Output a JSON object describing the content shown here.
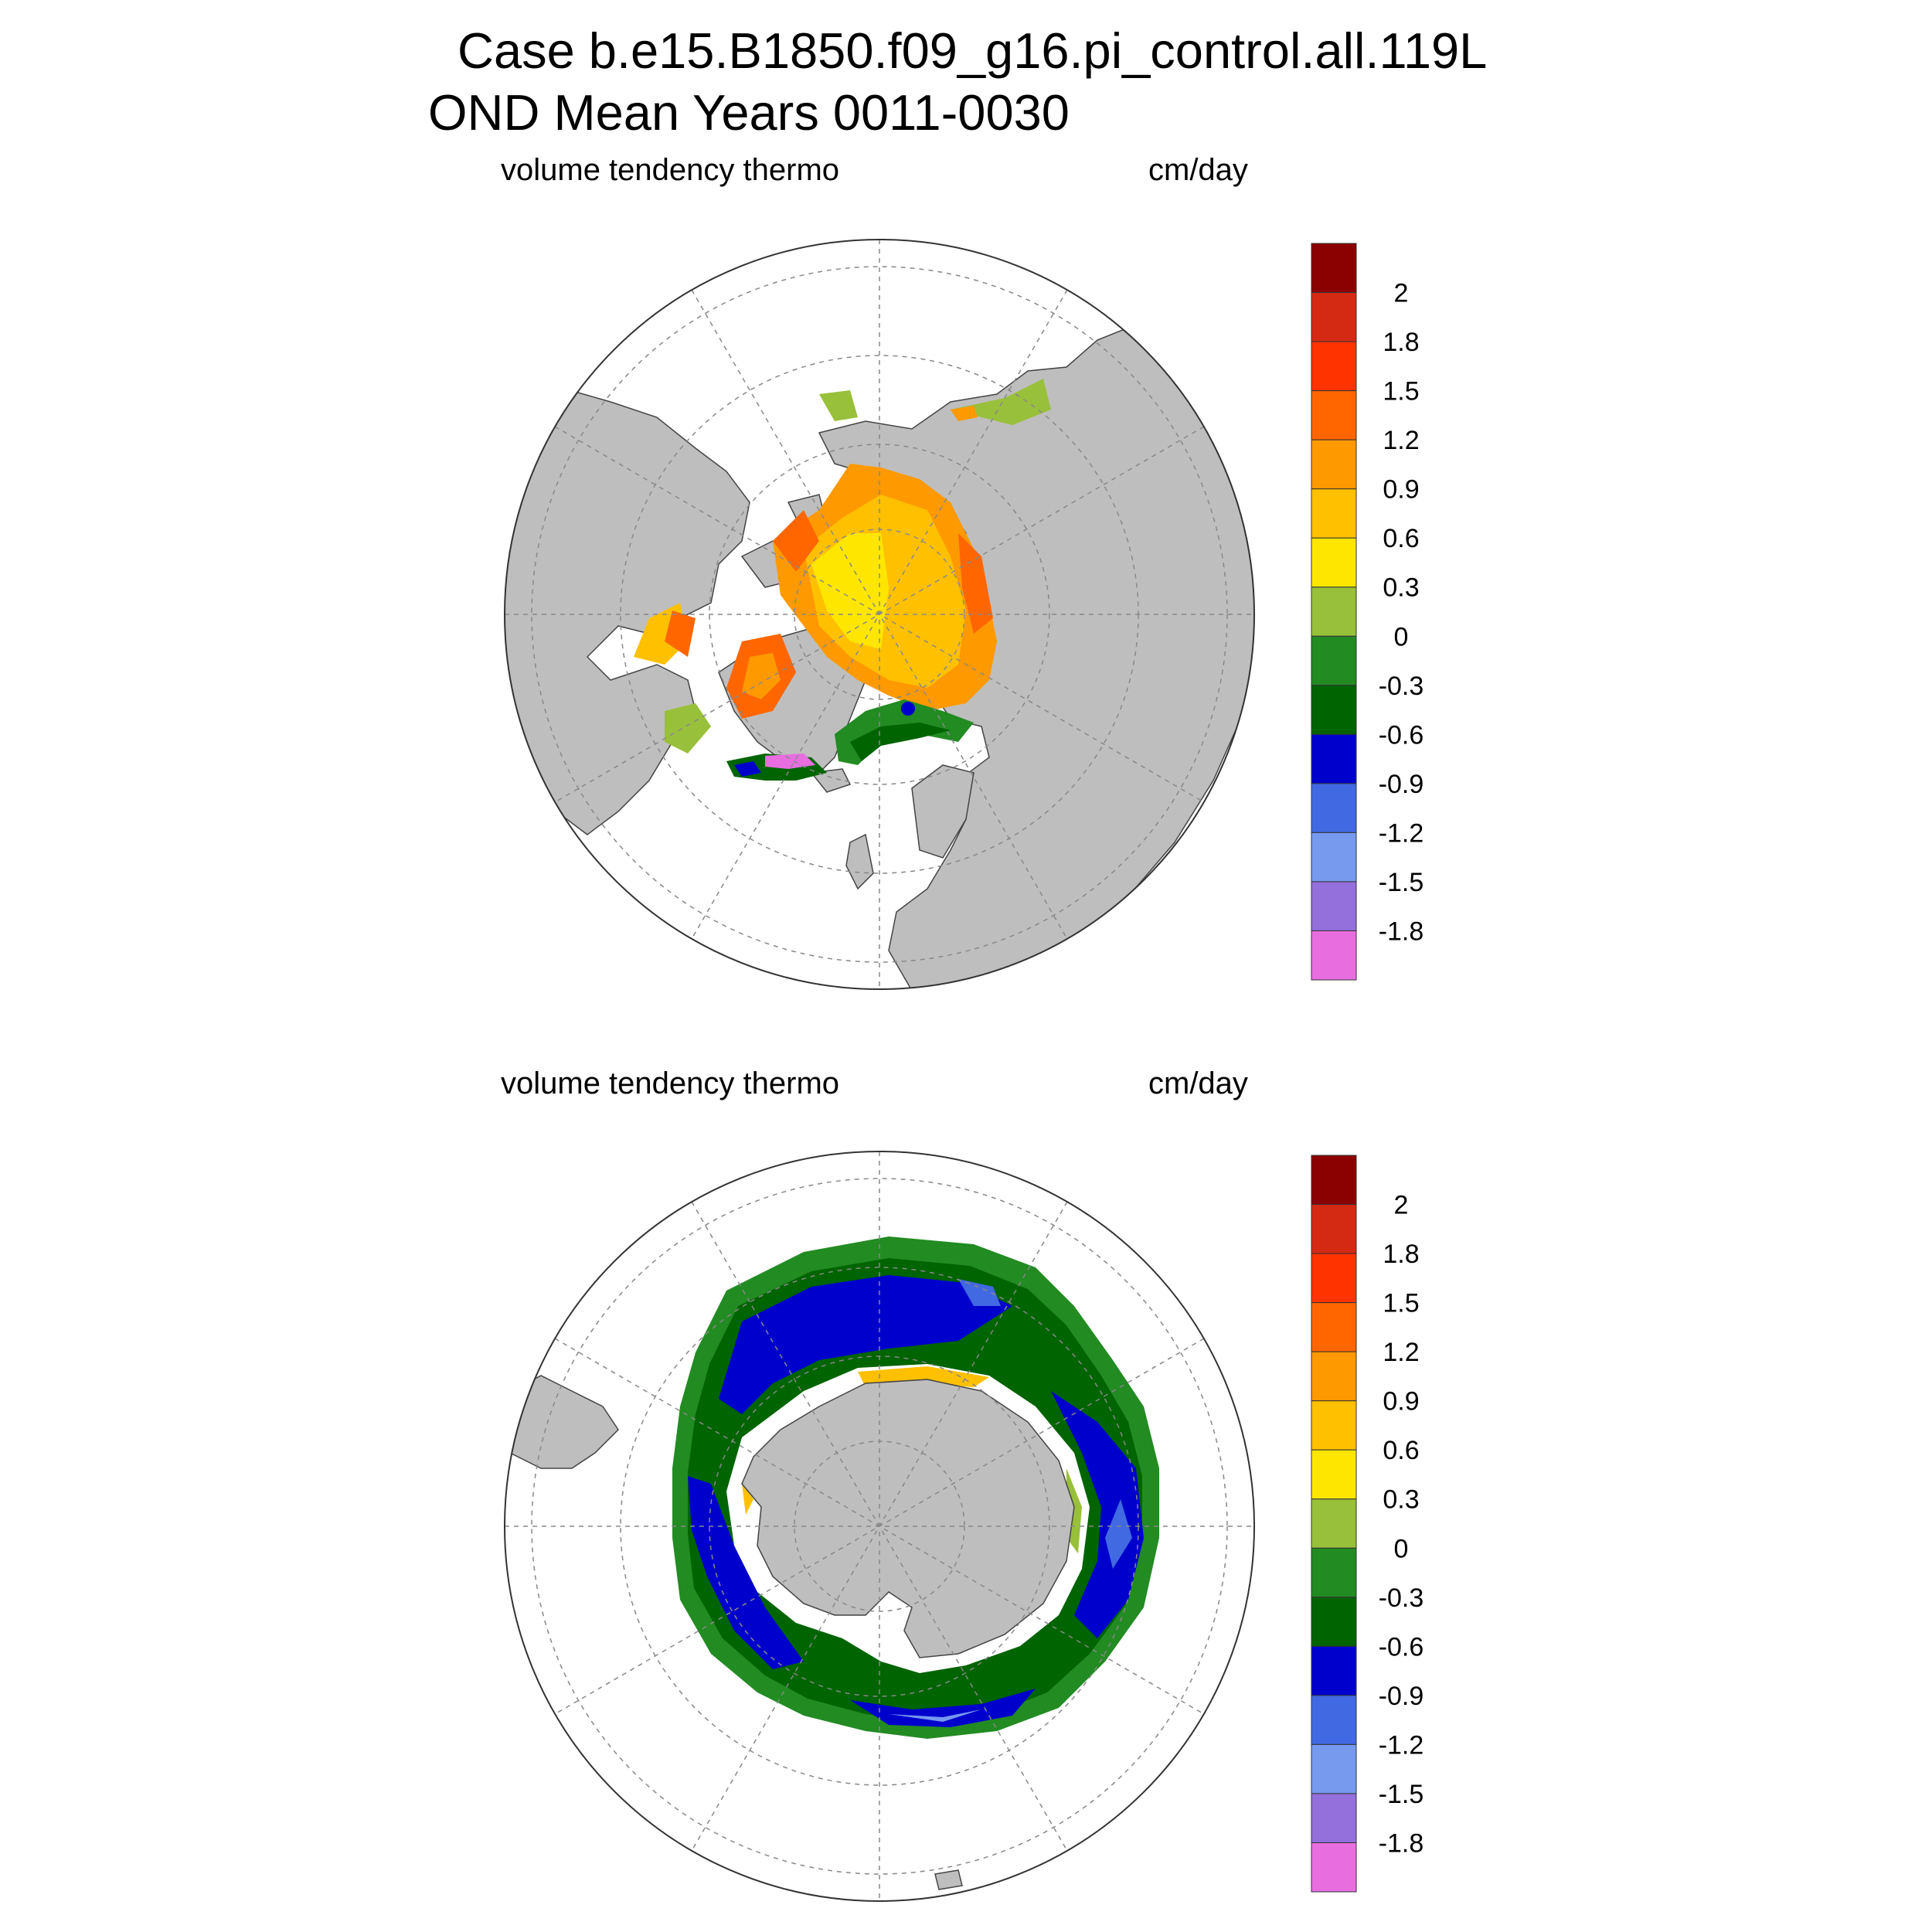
{
  "figure": {
    "title_line1": "Case b.e15.B1850.f09_g16.pi_control.all.119L",
    "title_line2": "OND Mean   Years 0011-0030"
  },
  "panels": [
    {
      "id": "north",
      "left_label": "volume tendency thermo",
      "right_label": "cm/day"
    },
    {
      "id": "south",
      "left_label": "volume tendency thermo",
      "right_label": "cm/day"
    }
  ],
  "colorbar": {
    "labels": [
      "2",
      "1.8",
      "1.5",
      "1.2",
      "0.9",
      "0.6",
      "0.3",
      "0",
      "-0.3",
      "-0.6",
      "-0.9",
      "-1.2",
      "-1.5",
      "-1.8"
    ],
    "colors": [
      "#8B0000",
      "#D42A14",
      "#FF3300",
      "#FF6600",
      "#FF9900",
      "#FFC000",
      "#FFE600",
      "#99C03A",
      "#228B22",
      "#006400",
      "#0000CD",
      "#4169E1",
      "#7799EE",
      "#9370DB",
      "#E86EE0"
    ]
  },
  "colors": {
    "land": "#BEBEBE",
    "ocean": "#FFFFFF",
    "grid": "#888888"
  }
}
